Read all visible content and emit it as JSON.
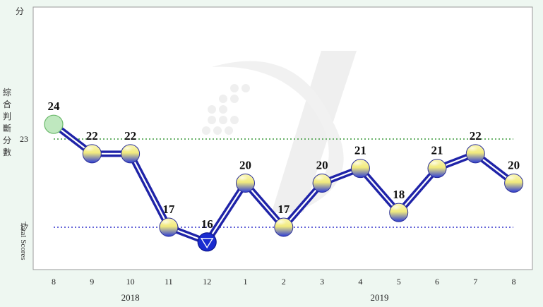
{
  "chart_data": {
    "type": "line",
    "unit_label": "分",
    "ylabel_cjk": "綜合判斷分數",
    "ylabel_en": "Total Scores",
    "x_categories": [
      "8",
      "9",
      "10",
      "11",
      "12",
      "1",
      "2",
      "3",
      "4",
      "5",
      "6",
      "7",
      "8"
    ],
    "years": [
      {
        "label": "2018",
        "from_index": 0,
        "to_index": 4
      },
      {
        "label": "2019",
        "from_index": 5,
        "to_index": 12
      }
    ],
    "values": [
      24,
      22,
      22,
      17,
      16,
      20,
      17,
      20,
      21,
      18,
      21,
      22,
      20
    ],
    "y_ticks": [
      17,
      23
    ],
    "ylim": [
      13,
      31
    ],
    "reference_lines": [
      {
        "value": 23,
        "color": "#3a9a3a"
      },
      {
        "value": 17,
        "color": "#3333cc"
      }
    ],
    "special_markers": [
      {
        "index": 0,
        "shape": "circle",
        "color": "#bfe8bf"
      },
      {
        "index": 4,
        "shape": "down-triangle",
        "color": "#1a2bd0"
      }
    ],
    "line_color": "#1f23a8",
    "marker_color_top": "#f6f19a",
    "marker_color_bottom": "#2b3bd6",
    "grid": false,
    "legend": "none"
  }
}
